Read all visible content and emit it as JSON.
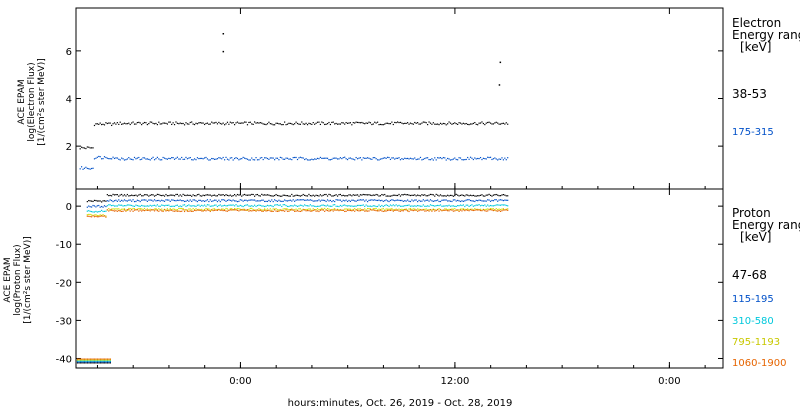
{
  "chart_data": [
    {
      "type": "scatter",
      "panel": "electron",
      "ylabel_lines": [
        "ACE EPAM",
        "log(Electron Flux)",
        "[1/(cm²s ster MeV)]"
      ],
      "yticks": [
        2,
        4,
        6
      ],
      "ylim": [
        0.2,
        7.8
      ],
      "legend_title_lines": [
        "Electron",
        "Energy range",
        "[keV]"
      ],
      "series": [
        {
          "name": "38-53",
          "color": "#000000",
          "baseline": 2.98,
          "segments": [
            [
              -9,
              -8.2,
              1.95
            ],
            [
              -8.2,
              -7,
              2.95
            ],
            [
              -7,
              15,
              2.98
            ]
          ],
          "spikes": [
            [
              -1,
              6.75
            ],
            [
              -1,
              6.0
            ],
            [
              14.5,
              5.55
            ],
            [
              14.45,
              4.6
            ]
          ]
        },
        {
          "name": "175-315",
          "color": "#0050c8",
          "segments": [
            [
              -9,
              -8.2,
              1.1
            ],
            [
              -8.2,
              -7,
              1.55
            ],
            [
              -7,
              15,
              1.5
            ]
          ],
          "spikes": []
        }
      ]
    },
    {
      "type": "scatter",
      "panel": "proton",
      "ylabel_lines": [
        "ACE EPAM",
        "log(Proton Flux)",
        "[1/(cm²s ster MeV)]"
      ],
      "yticks": [
        0,
        -10,
        -20,
        -30,
        -40
      ],
      "ylim": [
        -42.5,
        4.5
      ],
      "legend_title_lines": [
        "Proton",
        "Energy range",
        "[keV]"
      ],
      "series": [
        {
          "name": "47-68",
          "color": "#000000",
          "level": 3.0
        },
        {
          "name": "115-195",
          "color": "#0050c8",
          "level": 1.6
        },
        {
          "name": "310-580",
          "color": "#00c8dc",
          "level": 0.3
        },
        {
          "name": "795-1193",
          "color": "#d2dc00",
          "level": -0.7
        },
        {
          "name": "1060-1900",
          "color": "#e66400",
          "level": -1.0
        }
      ],
      "fill_level": -40.5
    }
  ],
  "x_axis": {
    "label": "hours:minutes, Oct. 26, 2019 - Oct. 28, 2019",
    "ticks": [
      "0:00",
      "12:00",
      "0:00"
    ],
    "tick_hours": [
      0,
      12,
      24
    ],
    "range_hours": [
      -9.2,
      27
    ],
    "data_end_hours": 15
  },
  "colors": {
    "frame": "#000000",
    "background": "#ffffff"
  }
}
